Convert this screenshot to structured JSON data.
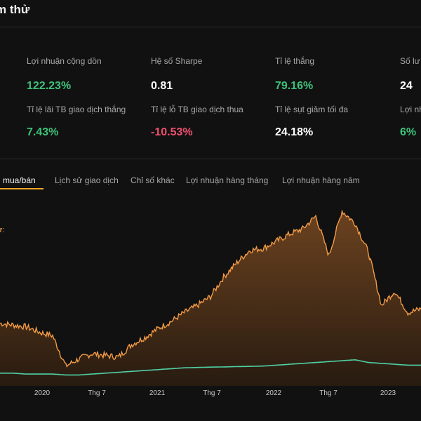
{
  "header": {
    "title": "m thử"
  },
  "metrics": [
    {
      "label": "Lợi nhuận cộng dồn",
      "value": "122.23%",
      "color": "#3ec27a"
    },
    {
      "label": "Hệ số Sharpe",
      "value": "0.81",
      "color": "#ffffff"
    },
    {
      "label": "Tỉ lệ thắng",
      "value": "79.16%",
      "color": "#3ec27a"
    },
    {
      "label": "Số lư",
      "value": "24",
      "color": "#ffffff"
    },
    {
      "label": "Tỉ lệ lãi TB giao dịch thắng",
      "value": "7.43%",
      "color": "#3ec27a"
    },
    {
      "label": "Tỉ lệ lỗ TB giao dịch thua",
      "value": "-10.53%",
      "color": "#f04f6f"
    },
    {
      "label": "Tỉ lệ sụt giảm tối đa",
      "value": "24.18%",
      "color": "#ffffff"
    },
    {
      "label": "Lợi nh",
      "value": "6%",
      "color": "#3ec27a"
    }
  ],
  "tabs": [
    {
      "label": "h mua/bán",
      "active": true
    },
    {
      "label": "Lịch sử giao dịch",
      "active": false
    },
    {
      "label": "Chỉ số khác",
      "active": false
    },
    {
      "label": "Lợi nhuận hàng tháng",
      "active": false
    },
    {
      "label": "Lợi nhuận hàng năm",
      "active": false
    }
  ],
  "chart": {
    "partial_label": "ừ:",
    "x_ticks": [
      "2020",
      "Thg 7",
      "2021",
      "Thg 7",
      "2022",
      "Thg 7",
      "2023"
    ]
  },
  "colors": {
    "accent": "#f5a623",
    "strategy_line": "#f29a45",
    "benchmark_line": "#4fd1a5",
    "positive": "#3ec27a",
    "negative": "#f04f6f"
  },
  "chart_data": {
    "type": "area",
    "x_labels": [
      "2020",
      "Thg 7",
      "2021",
      "Thg 7",
      "2022",
      "Thg 7",
      "2023"
    ],
    "series": [
      {
        "values": [
          0.32,
          0.31,
          0.3,
          0.27,
          0.25,
          0.08,
          0.12,
          0.15,
          0.14,
          0.13,
          0.2,
          0.24,
          0.29,
          0.33,
          0.38,
          0.42,
          0.47,
          0.58,
          0.66,
          0.73,
          0.74,
          0.78,
          0.82,
          0.85,
          0.92,
          0.7,
          0.95,
          0.88,
          0.72,
          0.42,
          0.5,
          0.38,
          0.4
        ]
      },
      {
        "values": [
          0.04,
          0.04,
          0.035,
          0.035,
          0.035,
          0.03,
          0.03,
          0.035,
          0.04,
          0.045,
          0.05,
          0.055,
          0.06,
          0.065,
          0.07,
          0.072,
          0.074,
          0.075,
          0.077,
          0.078,
          0.08,
          0.085,
          0.09,
          0.095,
          0.1,
          0.105,
          0.11,
          0.115,
          0.1,
          0.095,
          0.09,
          0.085,
          0.085
        ]
      }
    ]
  }
}
